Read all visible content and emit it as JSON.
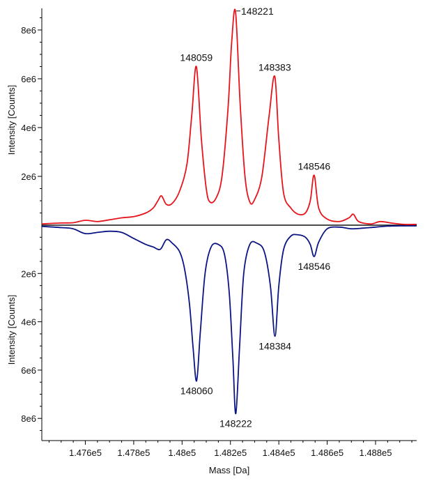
{
  "chart_data": {
    "type": "line",
    "title": "",
    "xlabel": "Mass [Da]",
    "ylabel_top": "Intensity [Counts]",
    "ylabel_bottom": "Intensity [Counts]",
    "xlim": [
      147420,
      148970
    ],
    "x_ticks": [
      147600,
      147800,
      148000,
      148200,
      148400,
      148600,
      148800
    ],
    "x_tick_labels": [
      "1.476e5",
      "1.478e5",
      "1.48e5",
      "1.482e5",
      "1.484e5",
      "1.486e5",
      "1.488e5"
    ],
    "top_ylim": [
      0,
      9000000
    ],
    "bottom_ylim": [
      0,
      9000000
    ],
    "top_y_ticks": [
      2000000,
      4000000,
      6000000,
      8000000
    ],
    "top_y_tick_labels": [
      "2e6",
      "4e6",
      "6e6",
      "8e6"
    ],
    "bottom_y_ticks": [
      2000000,
      4000000,
      6000000,
      8000000
    ],
    "bottom_y_tick_labels": [
      "2e6",
      "4e6",
      "6e6",
      "8e6"
    ],
    "series": [
      {
        "color": "#e8141b",
        "direction": "up",
        "peaks": [
          {
            "x": 147915,
            "y": 1200000
          },
          {
            "x": 148059,
            "y": 6500000
          },
          {
            "x": 148221,
            "y": 8750000
          },
          {
            "x": 148383,
            "y": 6100000
          },
          {
            "x": 148546,
            "y": 2050000
          },
          {
            "x": 148708,
            "y": 450000
          }
        ],
        "points": [
          [
            147420,
            50000
          ],
          [
            147500,
            90000
          ],
          [
            147550,
            100000
          ],
          [
            147600,
            200000
          ],
          [
            147650,
            150000
          ],
          [
            147700,
            220000
          ],
          [
            147750,
            300000
          ],
          [
            147800,
            350000
          ],
          [
            147850,
            500000
          ],
          [
            147880,
            700000
          ],
          [
            147900,
            1000000
          ],
          [
            147915,
            1200000
          ],
          [
            147935,
            850000
          ],
          [
            147960,
            900000
          ],
          [
            147990,
            1400000
          ],
          [
            148020,
            2500000
          ],
          [
            148040,
            4500000
          ],
          [
            148059,
            6500000
          ],
          [
            148080,
            3500000
          ],
          [
            148100,
            1500000
          ],
          [
            148115,
            950000
          ],
          [
            148140,
            1100000
          ],
          [
            148165,
            2000000
          ],
          [
            148190,
            4800000
          ],
          [
            148205,
            7500000
          ],
          [
            148221,
            8750000
          ],
          [
            148240,
            5000000
          ],
          [
            148260,
            2000000
          ],
          [
            148280,
            950000
          ],
          [
            148300,
            1050000
          ],
          [
            148330,
            2000000
          ],
          [
            148360,
            4500000
          ],
          [
            148383,
            6100000
          ],
          [
            148400,
            3500000
          ],
          [
            148420,
            1300000
          ],
          [
            148450,
            700000
          ],
          [
            148480,
            450000
          ],
          [
            148510,
            500000
          ],
          [
            148530,
            1000000
          ],
          [
            148546,
            2050000
          ],
          [
            148565,
            700000
          ],
          [
            148600,
            250000
          ],
          [
            148650,
            150000
          ],
          [
            148690,
            300000
          ],
          [
            148708,
            450000
          ],
          [
            148730,
            150000
          ],
          [
            148780,
            50000
          ],
          [
            148820,
            150000
          ],
          [
            148870,
            80000
          ],
          [
            148920,
            30000
          ],
          [
            148970,
            30000
          ]
        ]
      },
      {
        "color": "#0a1483",
        "direction": "down",
        "peaks": [
          {
            "x": 148060,
            "y": 6450000
          },
          {
            "x": 148222,
            "y": 7800000
          },
          {
            "x": 148384,
            "y": 4600000
          },
          {
            "x": 148546,
            "y": 1300000
          }
        ],
        "points": [
          [
            147420,
            50000
          ],
          [
            147500,
            100000
          ],
          [
            147550,
            150000
          ],
          [
            147600,
            350000
          ],
          [
            147650,
            300000
          ],
          [
            147700,
            250000
          ],
          [
            147750,
            300000
          ],
          [
            147800,
            550000
          ],
          [
            147850,
            800000
          ],
          [
            147880,
            900000
          ],
          [
            147910,
            1000000
          ],
          [
            147935,
            600000
          ],
          [
            147960,
            750000
          ],
          [
            147990,
            1100000
          ],
          [
            148010,
            1800000
          ],
          [
            148030,
            3200000
          ],
          [
            148045,
            5000000
          ],
          [
            148060,
            6450000
          ],
          [
            148075,
            4500000
          ],
          [
            148095,
            2000000
          ],
          [
            148120,
            900000
          ],
          [
            148150,
            800000
          ],
          [
            148175,
            1200000
          ],
          [
            148195,
            2800000
          ],
          [
            148210,
            5500000
          ],
          [
            148222,
            7800000
          ],
          [
            148238,
            5000000
          ],
          [
            148255,
            2000000
          ],
          [
            148280,
            800000
          ],
          [
            148310,
            750000
          ],
          [
            148340,
            1100000
          ],
          [
            148365,
            2500000
          ],
          [
            148384,
            4600000
          ],
          [
            148400,
            2500000
          ],
          [
            148420,
            1000000
          ],
          [
            148450,
            450000
          ],
          [
            148480,
            400000
          ],
          [
            148510,
            500000
          ],
          [
            148530,
            800000
          ],
          [
            148546,
            1300000
          ],
          [
            148565,
            700000
          ],
          [
            148600,
            150000
          ],
          [
            148650,
            80000
          ],
          [
            148700,
            150000
          ],
          [
            148750,
            120000
          ],
          [
            148800,
            80000
          ],
          [
            148850,
            40000
          ],
          [
            148900,
            30000
          ],
          [
            148970,
            30000
          ]
        ]
      }
    ],
    "annotations": [
      {
        "text": "148221",
        "x": 148221,
        "y": 8750000,
        "series": 0,
        "pos": "right"
      },
      {
        "text": "148059",
        "x": 148059,
        "y": 6500000,
        "series": 0,
        "pos": "above"
      },
      {
        "text": "148383",
        "x": 148383,
        "y": 6100000,
        "series": 0,
        "pos": "above"
      },
      {
        "text": "148546",
        "x": 148546,
        "y": 2050000,
        "series": 0,
        "pos": "above"
      },
      {
        "text": "148546",
        "x": 148546,
        "y": 1300000,
        "series": 1,
        "pos": "below"
      },
      {
        "text": "148384",
        "x": 148384,
        "y": 4600000,
        "series": 1,
        "pos": "below"
      },
      {
        "text": "148060",
        "x": 148060,
        "y": 6450000,
        "series": 1,
        "pos": "below"
      },
      {
        "text": "148222",
        "x": 148222,
        "y": 7800000,
        "series": 1,
        "pos": "below"
      }
    ]
  }
}
